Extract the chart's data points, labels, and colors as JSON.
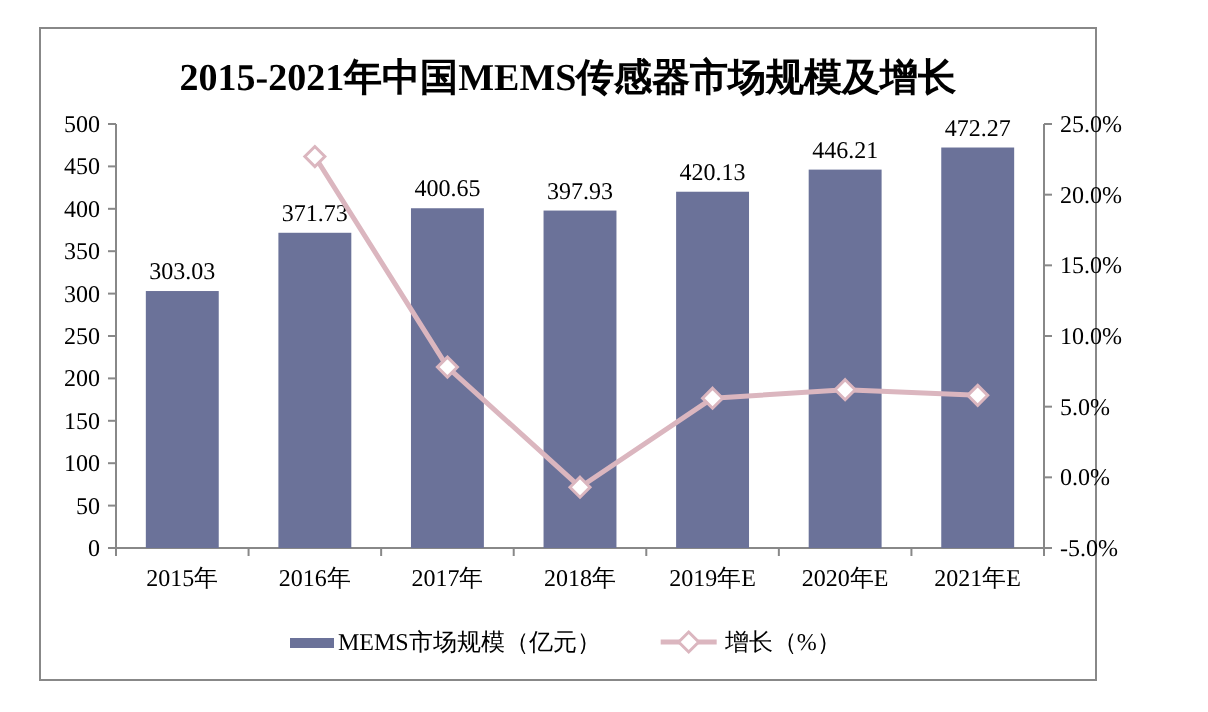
{
  "chart_data": {
    "type": "bar",
    "title": "2015-2021年中国MEMS传感器市场规模及增长",
    "categories": [
      "2015年",
      "2016年",
      "2017年",
      "2018年",
      "2019年E",
      "2020年E",
      "2021年E"
    ],
    "series": [
      {
        "name": "MEMS市场规模（亿元）",
        "color": "#6b7299",
        "values": [
          303.03,
          371.73,
          400.65,
          397.93,
          420.13,
          446.21,
          472.27
        ],
        "data_labels": true
      },
      {
        "name": "增长（%）",
        "type": "line",
        "axis": "y2",
        "color": "#dbb6bf",
        "marker": "diamond",
        "values": [
          null,
          22.7,
          7.8,
          -0.7,
          5.6,
          6.2,
          5.8
        ]
      }
    ],
    "ylim": [
      0,
      500
    ],
    "yticks": [
      0,
      50,
      100,
      150,
      200,
      250,
      300,
      350,
      400,
      450,
      500
    ],
    "y2lim": [
      -5,
      25
    ],
    "y2ticks": [
      {
        "value": -5,
        "label": "-5.0%"
      },
      {
        "value": 0,
        "label": "0.0%"
      },
      {
        "value": 5,
        "label": "5.0%"
      },
      {
        "value": 10,
        "label": "10.0%"
      },
      {
        "value": 15,
        "label": "15.0%"
      },
      {
        "value": 20,
        "label": "20.0%"
      },
      {
        "value": 25,
        "label": "25.0%"
      }
    ],
    "grid": false,
    "legend": "bottom"
  }
}
